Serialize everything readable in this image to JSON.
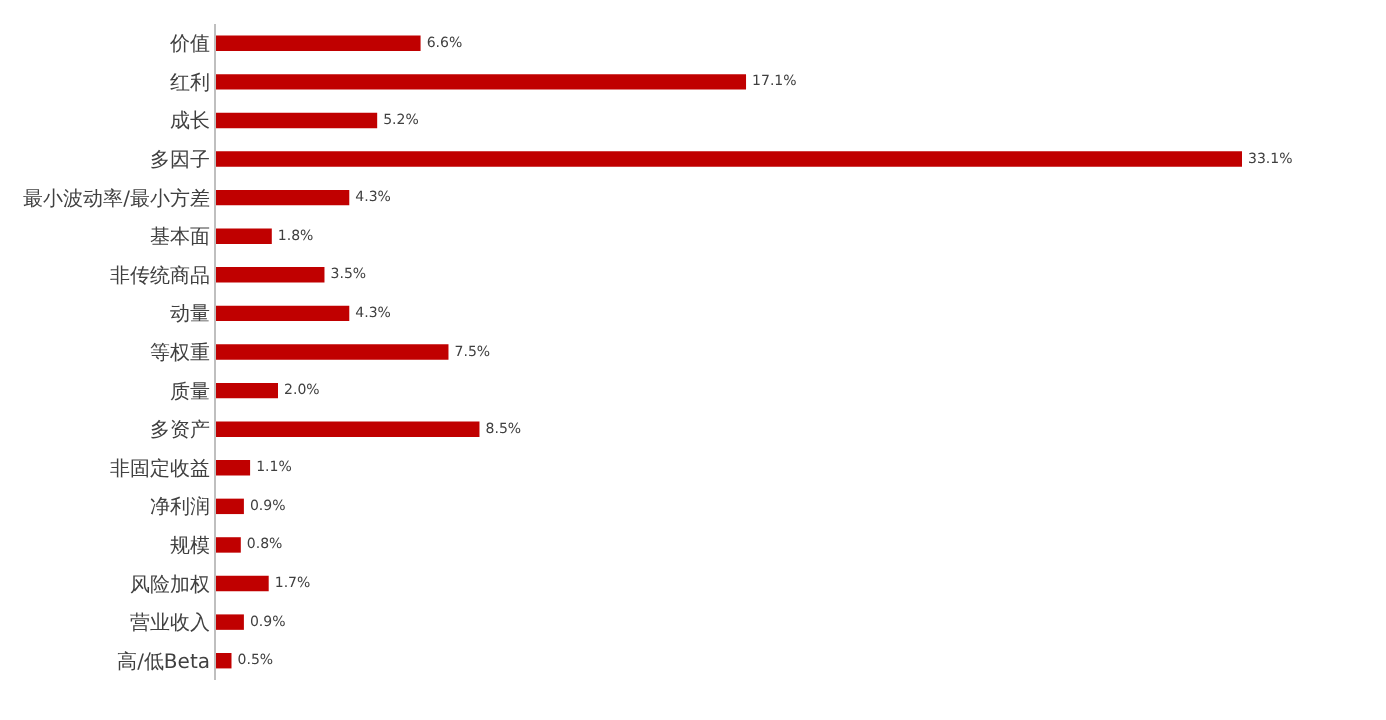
{
  "chart_data": {
    "type": "bar",
    "orientation": "horizontal",
    "categories": [
      "价值",
      "红利",
      "成长",
      "多因子",
      "最小波动率/最小方差",
      "基本面",
      "非传统商品",
      "动量",
      "等权重",
      "质量",
      "多资产",
      "非固定收益",
      "净利润",
      "规模",
      "风险加权",
      "营业收入",
      "高/低Beta"
    ],
    "values": [
      6.6,
      17.1,
      5.2,
      33.1,
      4.3,
      1.8,
      3.5,
      4.3,
      7.5,
      2.0,
      8.5,
      1.1,
      0.9,
      0.8,
      1.7,
      0.9,
      0.5
    ],
    "value_labels": [
      "6.6%",
      "17.1%",
      "5.2%",
      "33.1%",
      "4.3%",
      "1.8%",
      "3.5%",
      "4.3%",
      "7.5%",
      "2.0%",
      "8.5%",
      "1.1%",
      "0.9%",
      "0.8%",
      "1.7%",
      "0.9%",
      "0.5%"
    ],
    "color": "#c00000"
  }
}
